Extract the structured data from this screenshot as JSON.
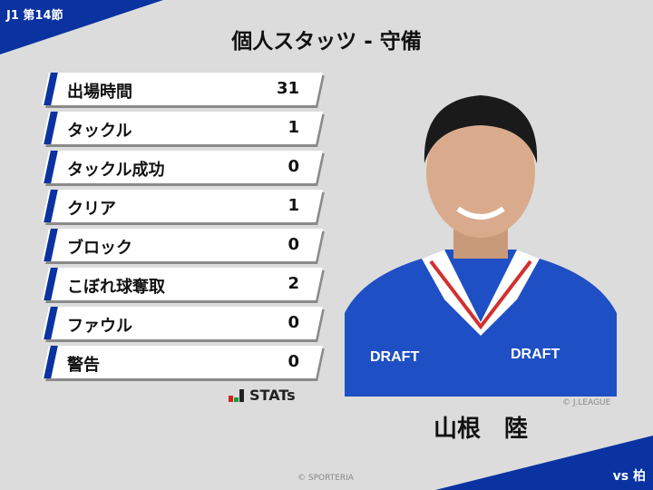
{
  "header": {
    "round": "J1 第14節",
    "title": "個人スタッツ - 守備"
  },
  "stats": [
    {
      "label": "出場時間",
      "value": "31"
    },
    {
      "label": "タックル",
      "value": "1"
    },
    {
      "label": "タックル成功",
      "value": "0"
    },
    {
      "label": "クリア",
      "value": "1"
    },
    {
      "label": "ブロック",
      "value": "0"
    },
    {
      "label": "こぼれ球奪取",
      "value": "2"
    },
    {
      "label": "ファウル",
      "value": "0"
    },
    {
      "label": "警告",
      "value": "0"
    }
  ],
  "brand": {
    "stats_logo": "STATs"
  },
  "player": {
    "name": "山根　陸",
    "photo_credit": "© J.LEAGUE",
    "jersey_text_left": "DRAFT",
    "jersey_text_right": "DRAFT"
  },
  "footer": {
    "copyright": "© SPORTERIA",
    "opponent": "vs 柏"
  },
  "colors": {
    "accent": "#0a32a0",
    "background": "#dcdcdc"
  }
}
